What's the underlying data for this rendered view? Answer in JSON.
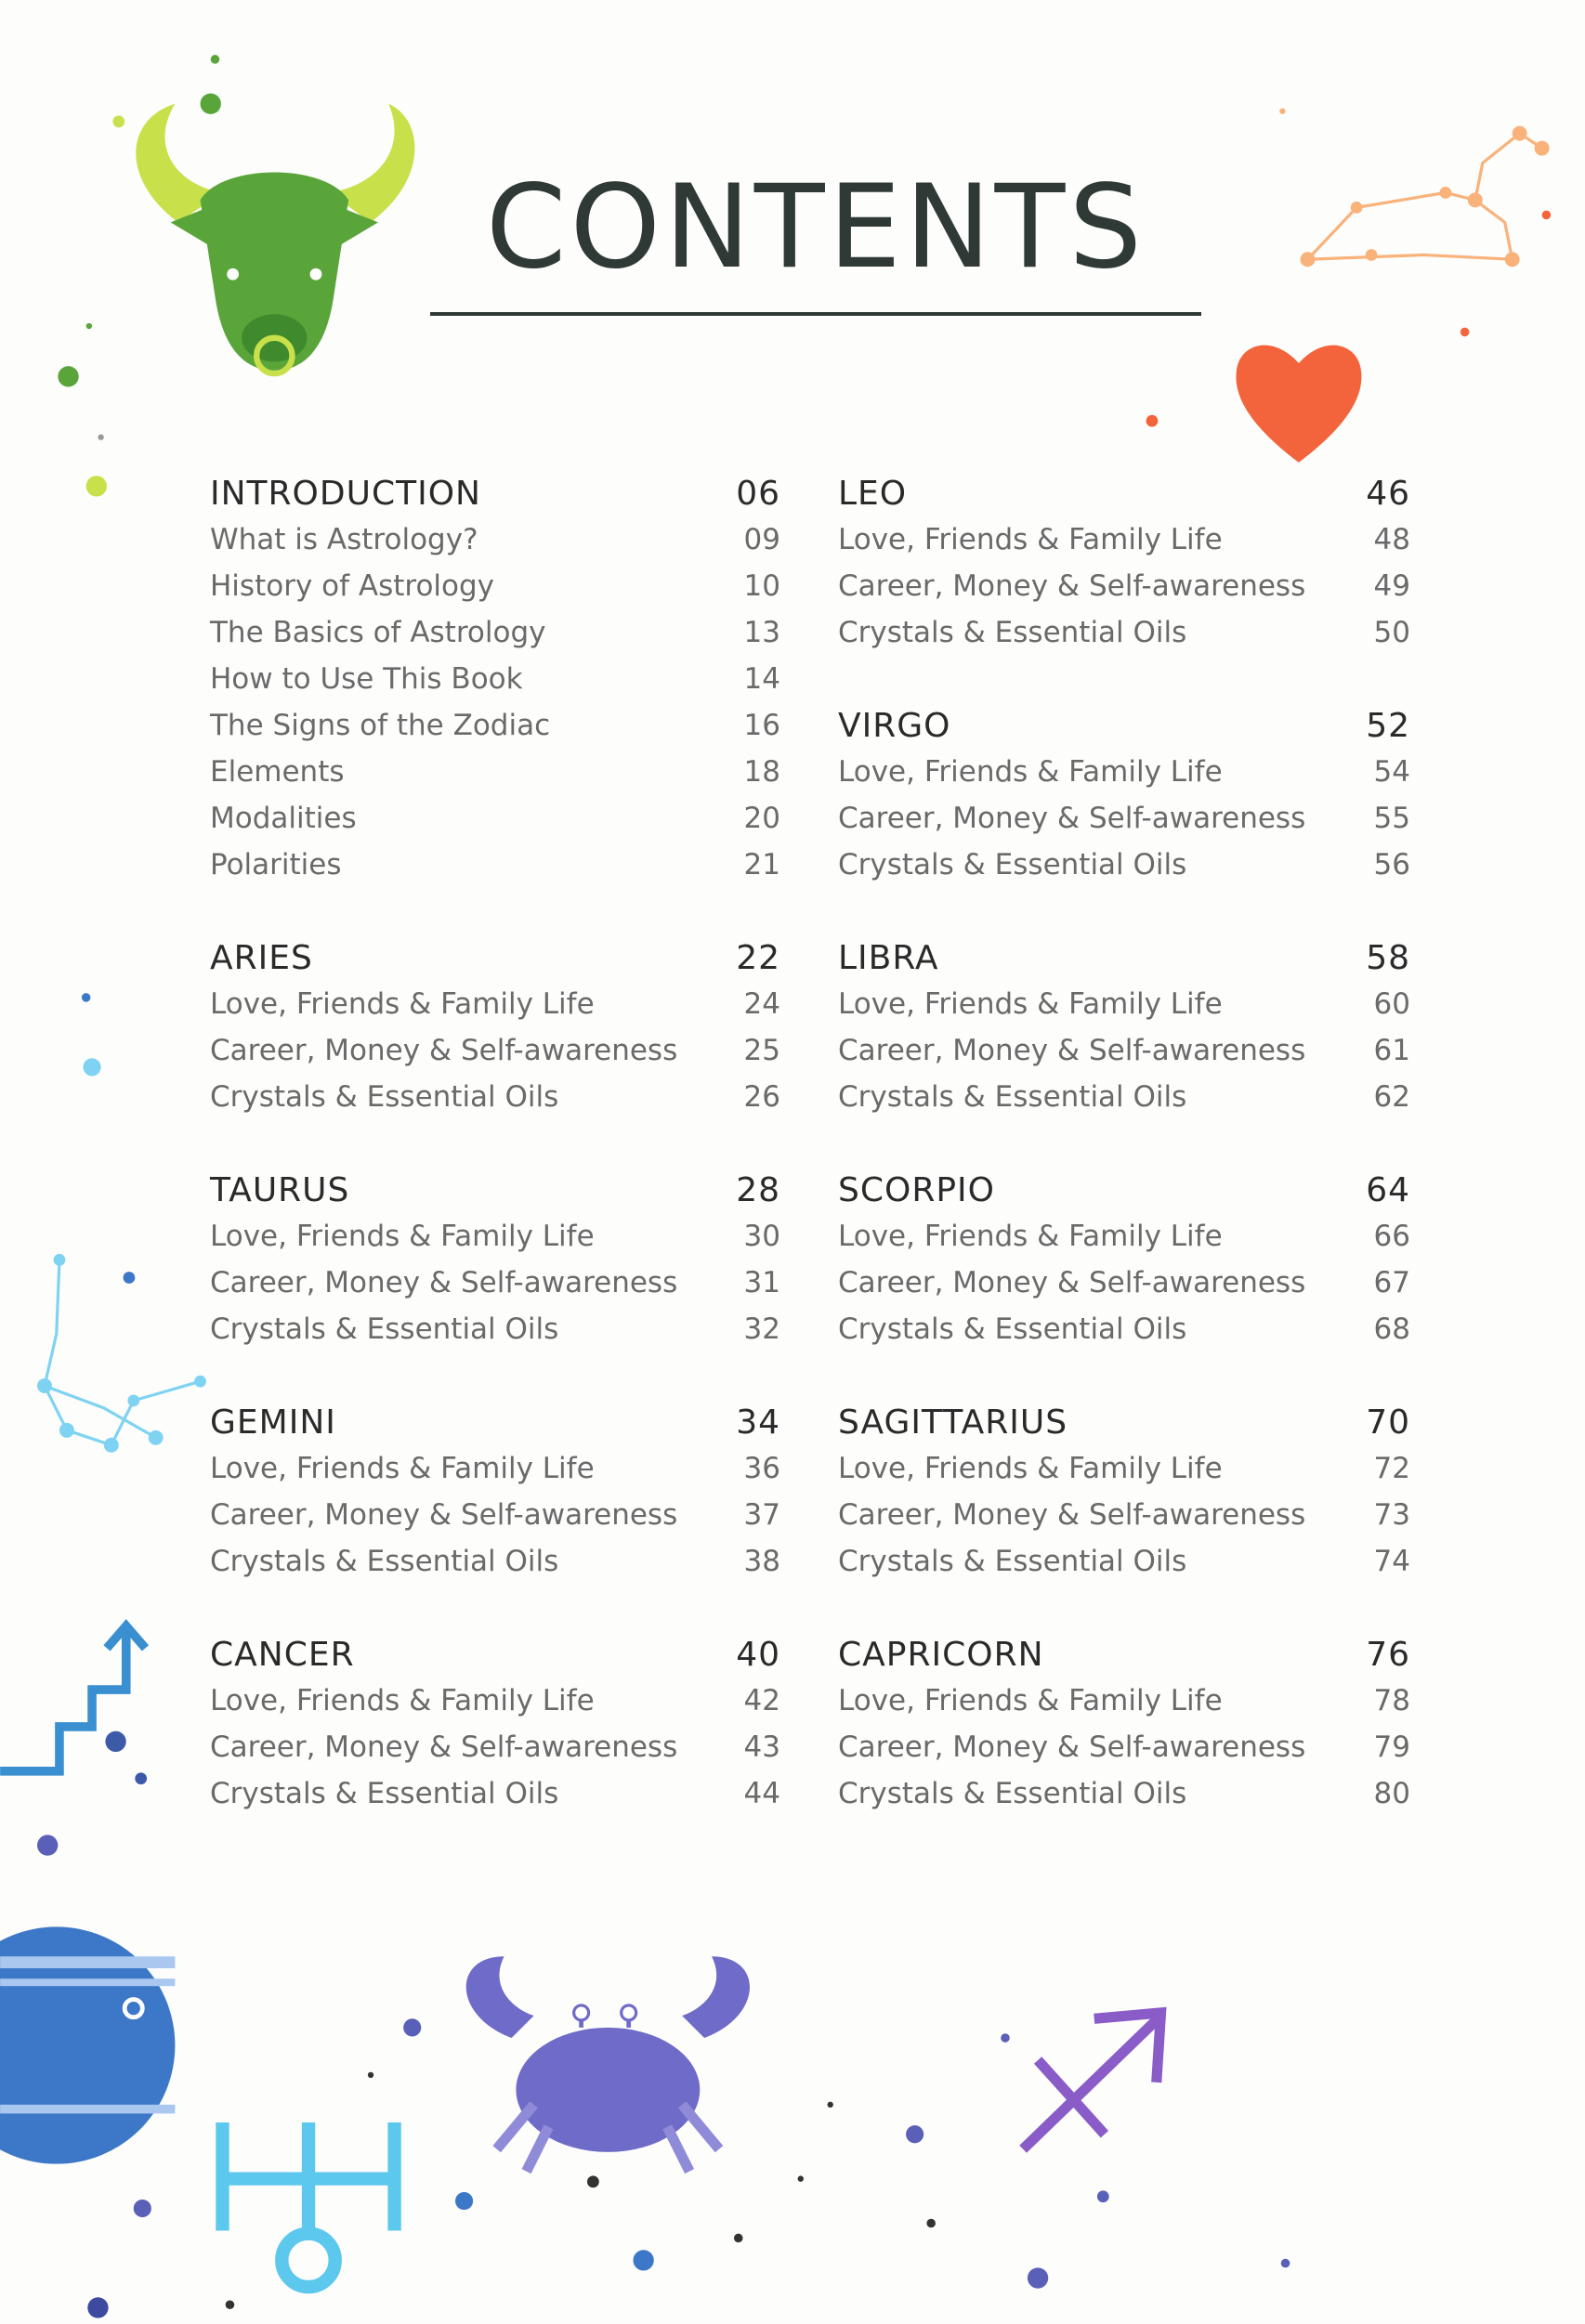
{
  "page": {
    "title": "CONTENTS"
  },
  "colors": {
    "title": "#2f3a36",
    "heading": "#2a2a2a",
    "item": "#6a6a6a",
    "bull": "#5aa53a",
    "horns": "#c8e04a",
    "heart": "#f4643c",
    "constellation_orange": "#f9b27a",
    "constellation_cyan": "#7fd3f2",
    "arrow_blue": "#3a8fd0",
    "planet": "#3d78c8",
    "crab": "#6f6bc8",
    "sagittarius": "#8a5cc8"
  },
  "icons": [
    "bull-icon",
    "heart-icon",
    "leo-constellation-icon",
    "cyan-constellation-icon",
    "stairs-arrow-icon",
    "planet-icon",
    "uranus-symbol-icon",
    "crab-icon",
    "sagittarius-arrow-icon"
  ],
  "toc": {
    "left": [
      {
        "heading": "INTRODUCTION",
        "page": "06",
        "items": [
          {
            "label": "What is Astrology?",
            "page": "09"
          },
          {
            "label": "History of Astrology",
            "page": "10"
          },
          {
            "label": "The Basics of Astrology",
            "page": "13"
          },
          {
            "label": "How to Use This Book",
            "page": "14"
          },
          {
            "label": "The Signs of the Zodiac",
            "page": "16"
          },
          {
            "label": "Elements",
            "page": "18"
          },
          {
            "label": "Modalities",
            "page": "20"
          },
          {
            "label": "Polarities",
            "page": "21"
          }
        ]
      },
      {
        "heading": "ARIES",
        "page": "22",
        "items": [
          {
            "label": "Love, Friends & Family Life",
            "page": "24"
          },
          {
            "label": "Career, Money & Self-awareness",
            "page": "25"
          },
          {
            "label": "Crystals & Essential Oils",
            "page": "26"
          }
        ]
      },
      {
        "heading": "TAURUS",
        "page": "28",
        "items": [
          {
            "label": "Love, Friends & Family Life",
            "page": "30"
          },
          {
            "label": "Career, Money & Self-awareness",
            "page": "31"
          },
          {
            "label": "Crystals & Essential Oils",
            "page": "32"
          }
        ]
      },
      {
        "heading": "GEMINI",
        "page": "34",
        "items": [
          {
            "label": "Love, Friends & Family Life",
            "page": "36"
          },
          {
            "label": "Career, Money & Self-awareness",
            "page": "37"
          },
          {
            "label": "Crystals & Essential Oils",
            "page": "38"
          }
        ]
      },
      {
        "heading": "CANCER",
        "page": "40",
        "items": [
          {
            "label": "Love, Friends & Family Life",
            "page": "42"
          },
          {
            "label": "Career, Money & Self-awareness",
            "page": "43"
          },
          {
            "label": "Crystals & Essential Oils",
            "page": "44"
          }
        ]
      }
    ],
    "right": [
      {
        "heading": "LEO",
        "page": "46",
        "items": [
          {
            "label": "Love, Friends & Family Life",
            "page": "48"
          },
          {
            "label": "Career, Money & Self-awareness",
            "page": "49"
          },
          {
            "label": "Crystals & Essential Oils",
            "page": "50"
          }
        ]
      },
      {
        "heading": "VIRGO",
        "page": "52",
        "items": [
          {
            "label": "Love, Friends & Family Life",
            "page": "54"
          },
          {
            "label": "Career, Money & Self-awareness",
            "page": "55"
          },
          {
            "label": "Crystals & Essential Oils",
            "page": "56"
          }
        ]
      },
      {
        "heading": "LIBRA",
        "page": "58",
        "items": [
          {
            "label": "Love, Friends & Family Life",
            "page": "60"
          },
          {
            "label": "Career, Money & Self-awareness",
            "page": "61"
          },
          {
            "label": "Crystals & Essential Oils",
            "page": "62"
          }
        ]
      },
      {
        "heading": "SCORPIO",
        "page": "64",
        "items": [
          {
            "label": "Love, Friends & Family Life",
            "page": "66"
          },
          {
            "label": "Career, Money & Self-awareness",
            "page": "67"
          },
          {
            "label": "Crystals & Essential Oils",
            "page": "68"
          }
        ]
      },
      {
        "heading": "SAGITTARIUS",
        "page": "70",
        "items": [
          {
            "label": "Love, Friends & Family Life",
            "page": "72"
          },
          {
            "label": "Career, Money & Self-awareness",
            "page": "73"
          },
          {
            "label": "Crystals & Essential Oils",
            "page": "74"
          }
        ]
      },
      {
        "heading": "CAPRICORN",
        "page": "76",
        "items": [
          {
            "label": "Love, Friends & Family Life",
            "page": "78"
          },
          {
            "label": "Career, Money & Self-awareness",
            "page": "79"
          },
          {
            "label": "Crystals & Essential Oils",
            "page": "80"
          }
        ]
      }
    ]
  }
}
